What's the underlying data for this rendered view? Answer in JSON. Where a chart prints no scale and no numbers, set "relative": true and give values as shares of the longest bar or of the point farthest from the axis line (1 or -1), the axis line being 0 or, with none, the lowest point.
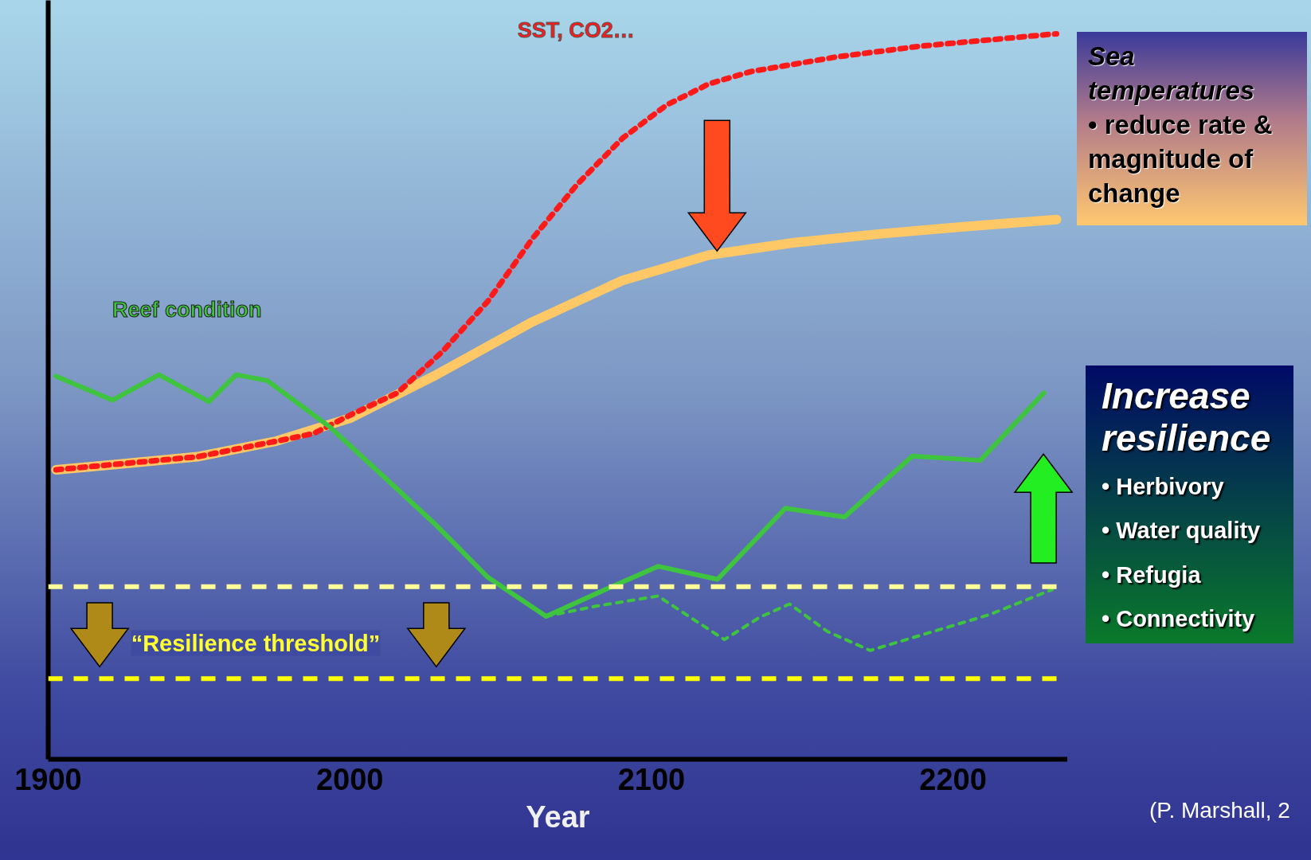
{
  "chart_data": {
    "type": "line",
    "relative": true,
    "xlabel": "Year",
    "xlim": [
      1900,
      2238
    ],
    "xticks": [
      1900,
      2000,
      2100,
      2200
    ],
    "grid": false,
    "series": [
      {
        "color": "#ffc866",
        "line_style": "solid",
        "x": [
          1902.6,
          1923.8,
          1949.5,
          1975.1,
          2000,
          2027.8,
          2060.6,
          2090.4,
          2119.1,
          2147.2,
          2175.3,
          2203.4,
          2234.3
        ],
        "values": [
          0.399,
          0.407,
          0.417,
          0.438,
          0.47,
          0.528,
          0.603,
          0.66,
          0.695,
          0.712,
          0.724,
          0.734,
          0.744
        ]
      },
      {
        "name": "SST, CO2…",
        "color": "#ff1a1a",
        "line_style": "dotted",
        "x": [
          1902.6,
          1949.5,
          1975.1,
          1988,
          2000.9,
          2015.8,
          2030.7,
          2045.7,
          2060.6,
          2075.5,
          2090.4,
          2105.1,
          2119.1,
          2133.1,
          2161.2,
          2189.3,
          2234.3
        ],
        "values": [
          0.399,
          0.417,
          0.438,
          0.449,
          0.476,
          0.505,
          0.562,
          0.631,
          0.718,
          0.793,
          0.856,
          0.902,
          0.931,
          0.948,
          0.968,
          0.983,
          1.0
        ]
      },
      {
        "name": "Reef condition",
        "color": "#3ec43e",
        "line_style": "solid",
        "x": [
          1902.6,
          1921.3,
          1936.7,
          1953.3,
          1962.3,
          1972.6,
          1993.1,
          2027.8,
          2045.7,
          2065.1,
          2081.5,
          2102.2,
          2121.9,
          2144.4,
          2164.0,
          2186.5,
          2209.0,
          2230.1
        ],
        "values": [
          0.528,
          0.495,
          0.53,
          0.493,
          0.53,
          0.522,
          0.459,
          0.326,
          0.251,
          0.197,
          0.228,
          0.266,
          0.248,
          0.346,
          0.334,
          0.418,
          0.412,
          0.505
        ]
      },
      {
        "color": "#3ec43e",
        "line_style": "dotted",
        "x": [
          2065.1,
          2081.5,
          2102.2,
          2113.5,
          2124.2,
          2136.0,
          2145.8,
          2158.4,
          2172.5,
          2189.3,
          2211.8,
          2232.9
        ],
        "values": [
          0.197,
          0.211,
          0.225,
          0.194,
          0.165,
          0.196,
          0.214,
          0.176,
          0.15,
          0.171,
          0.199,
          0.234
        ]
      }
    ],
    "ref_lines": [
      {
        "axis": "y",
        "value": 0.238,
        "color": "#ffff99",
        "line_style": "dashed"
      },
      {
        "axis": "y",
        "value": 0.111,
        "color": "#ffff00",
        "line_style": "dashed"
      }
    ],
    "annotations": [
      "Sea temperatures",
      "• reduce rate & magnitude of change",
      "Increase resilience",
      "• Herbivory",
      "• Water quality",
      "• Refugia",
      "• Connectivity",
      "“Resilience threshold”",
      "(P. Marshall, 2"
    ]
  }
}
